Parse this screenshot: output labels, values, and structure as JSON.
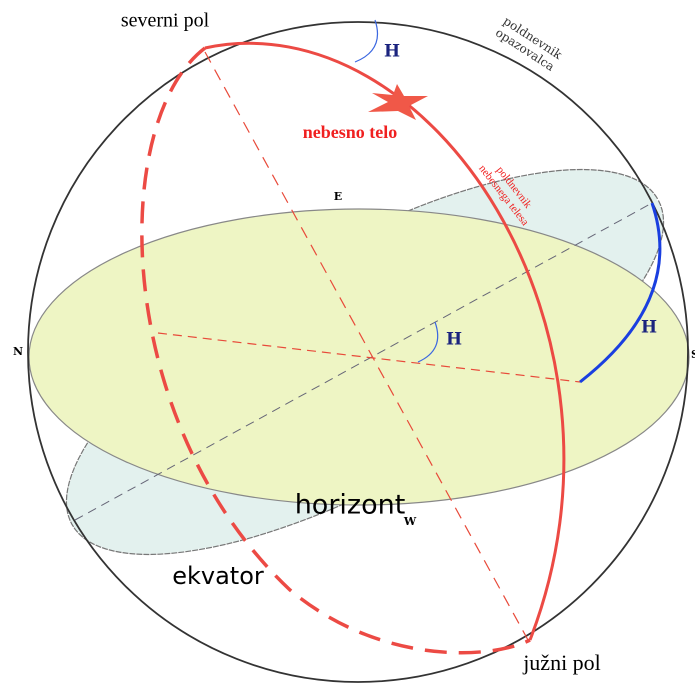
{
  "labels": {
    "north_pole": "severni pol",
    "angle_top": "H",
    "observer_meridian": [
      "poldnevnik",
      "opazovalca"
    ],
    "celestial_body": "nebesno telo",
    "body_meridian": [
      "poldnevnik",
      "nebesnega telesa"
    ],
    "east": "E",
    "north": "N",
    "south": "S",
    "angle_center": "H",
    "angle_right": "H",
    "horizon": "horizont",
    "west": "W",
    "equator": "ekvator",
    "south_pole": "južni pol"
  }
}
